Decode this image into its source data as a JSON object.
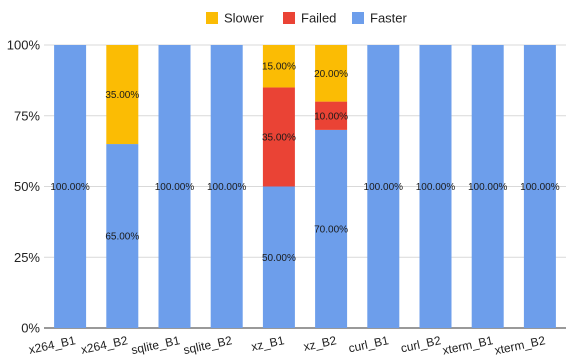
{
  "chart_data": {
    "type": "bar",
    "stacked": true,
    "percent": true,
    "categories": [
      "x264_B1",
      "x264_B2",
      "sqlite_B1",
      "sqlite_B2",
      "xz_B1",
      "xz_B2",
      "curl_B1",
      "curl_B2",
      "xterm_B1",
      "xterm_B2"
    ],
    "series": [
      {
        "name": "Faster",
        "color": "#6d9eeb",
        "values": [
          100,
          65,
          100,
          100,
          50,
          70,
          100,
          100,
          100,
          100
        ],
        "labels": [
          "100.00%",
          "65.00%",
          "100.00%",
          "100.00%",
          "50.00%",
          "70.00%",
          "100.00%",
          "100.00%",
          "100.00%",
          "100.00%"
        ]
      },
      {
        "name": "Failed",
        "color": "#ea4335",
        "values": [
          0,
          0,
          0,
          0,
          35,
          10,
          0,
          0,
          0,
          0
        ],
        "labels": [
          "",
          "",
          "",
          "",
          "35.00%",
          "10.00%",
          "",
          "",
          "",
          ""
        ]
      },
      {
        "name": "Slower",
        "color": "#fbbc04",
        "values": [
          0,
          35,
          0,
          0,
          15,
          20,
          0,
          0,
          0,
          0
        ],
        "labels": [
          "",
          "35.00%",
          "",
          "",
          "15.00%",
          "20.00%",
          "",
          "",
          "",
          ""
        ]
      }
    ],
    "legend_order": [
      "Slower",
      "Failed",
      "Faster"
    ],
    "legend_position": "top",
    "ylim": [
      0,
      100
    ],
    "yticks": [
      0,
      25,
      50,
      75,
      100
    ],
    "ytick_labels": [
      "0%",
      "25%",
      "50%",
      "75%",
      "100%"
    ],
    "grid": true,
    "title": "",
    "xlabel": "",
    "ylabel": ""
  }
}
